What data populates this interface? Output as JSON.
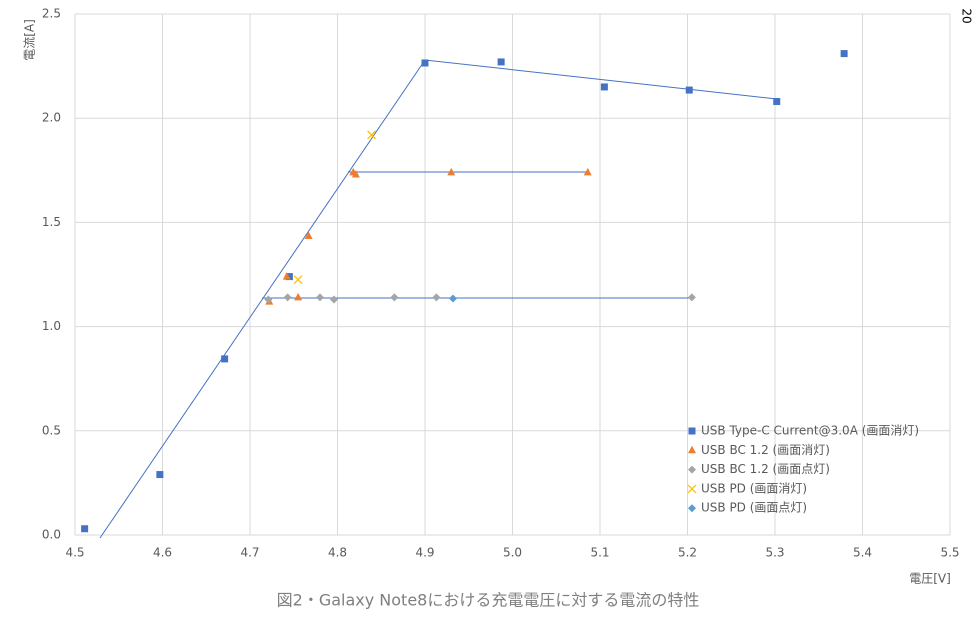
{
  "chart_data": {
    "type": "scatter",
    "title": "図2・Galaxy Note8における充電電圧に対する電流の特性",
    "x_label": "電圧[V]",
    "y_label": "電流[A]",
    "corner_label": "20",
    "xlim": [
      4.5,
      5.5
    ],
    "ylim": [
      0,
      2.5
    ],
    "xticks": [
      4.5,
      4.6,
      4.7,
      4.8,
      4.9,
      {
        "value": 5,
        "label": "5.0"
      },
      5.1,
      5.2,
      5.3,
      5.4,
      5.5
    ],
    "yticks": [
      {
        "value": 0,
        "label": "0.0"
      },
      0.5,
      {
        "value": 1,
        "label": "1.0"
      },
      1.5,
      {
        "value": 2,
        "label": "2.0"
      },
      2.5
    ],
    "grid": true,
    "legend": "lower right",
    "series": [
      {
        "name": "USB Type-C Current@3.0A (画面消灯)",
        "color": "#4472c4",
        "marker": "square",
        "x": [
          4.511,
          4.597,
          4.671,
          4.745,
          4.9,
          4.987,
          5.105,
          5.202,
          5.302,
          5.379
        ],
        "values": [
          0.03,
          0.29,
          0.845,
          1.24,
          2.265,
          2.27,
          2.15,
          2.135,
          2.08,
          2.31
        ]
      },
      {
        "name": "USB BC 1.2 (画面消灯)",
        "color": "#ed7d31",
        "marker": "triangle",
        "x": [
          4.722,
          4.742,
          4.755,
          4.767,
          4.818,
          4.821,
          4.93,
          5.086
        ],
        "values": [
          1.12,
          1.24,
          1.14,
          1.435,
          1.74,
          1.73,
          1.74,
          1.74
        ]
      },
      {
        "name": "USB BC 1.2 (画面点灯)",
        "color": "#a5a5a5",
        "marker": "diamond",
        "x": [
          4.721,
          4.743,
          4.78,
          4.796,
          4.865,
          4.913,
          5.205
        ],
        "values": [
          1.13,
          1.14,
          1.14,
          1.13,
          1.14,
          1.14,
          1.14
        ]
      },
      {
        "name": "USB PD (画面消灯)",
        "color": "#ffc000",
        "marker": "x",
        "x": [
          4.755,
          4.839
        ],
        "values": [
          1.225,
          1.92
        ]
      },
      {
        "name": "USB PD (画面点灯)",
        "color": "#5b9bd5",
        "marker": "diamond",
        "x": [
          4.932
        ],
        "values": [
          1.135
        ]
      }
    ]
  }
}
